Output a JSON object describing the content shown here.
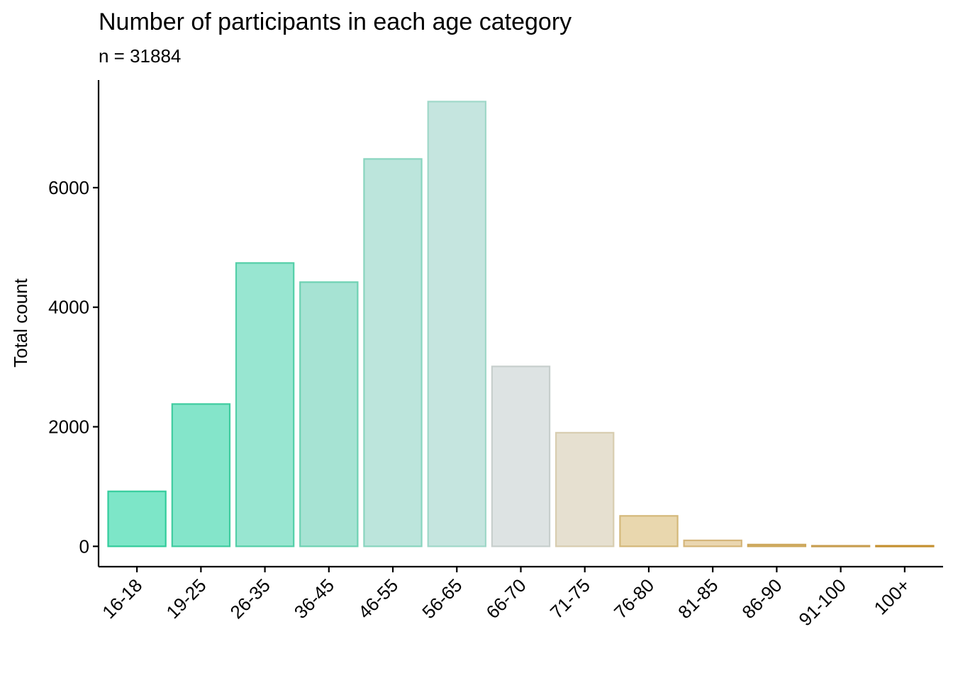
{
  "chart_data": {
    "type": "bar",
    "title": "Number of participants in each age category",
    "subtitle": "n = 31884",
    "xlabel": "",
    "ylabel": "Total count",
    "categories": [
      "16-18",
      "19-25",
      "26-35",
      "36-45",
      "46-55",
      "56-65",
      "66-70",
      "71-75",
      "76-80",
      "81-85",
      "86-90",
      "91-100",
      "100+"
    ],
    "values": [
      920,
      2380,
      4740,
      4420,
      6480,
      7440,
      3010,
      1900,
      510,
      100,
      30,
      10,
      10
    ],
    "ylim": [
      -340,
      7800
    ],
    "yticks": [
      0,
      2000,
      4000,
      6000
    ],
    "grid": false,
    "legend": "none",
    "fill_colors": [
      "#7de6c8",
      "#84e5ca",
      "#98e6d1",
      "#a6e3d3",
      "#bce5dc",
      "#c5e5df",
      "#dde3e3",
      "#e6e0d0",
      "#e9d7ae",
      "#ead6b0",
      "#dfc48f",
      "#d6b37c",
      "#c99a4e"
    ],
    "stroke_colors": [
      "#33cc9c",
      "#3fcc9f",
      "#54cfa8",
      "#6fd2b3",
      "#89d5bf",
      "#a0d8c9",
      "#c7cfcd",
      "#d8cdb0",
      "#d4b87a",
      "#d5b67a",
      "#cca658",
      "#c79d4f",
      "#c4902f"
    ]
  }
}
